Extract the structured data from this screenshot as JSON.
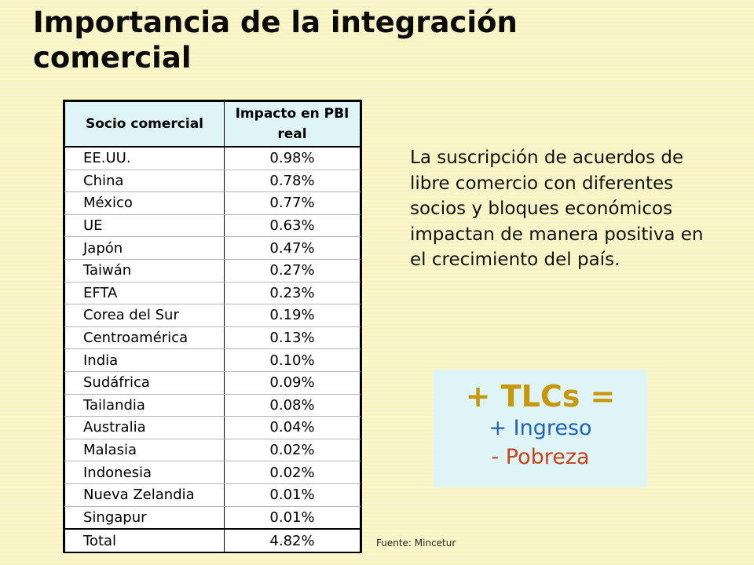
{
  "title": "Importancia de la integración comercial",
  "table": {
    "headers": [
      "Socio comercial",
      "Impacto en PBI real"
    ],
    "rows": [
      {
        "partner": "EE.UU.",
        "impact": "0.98%"
      },
      {
        "partner": "China",
        "impact": "0.78%"
      },
      {
        "partner": "México",
        "impact": "0.77%"
      },
      {
        "partner": "UE",
        "impact": "0.63%"
      },
      {
        "partner": "Japón",
        "impact": "0.47%"
      },
      {
        "partner": "Taiwán",
        "impact": "0.27%"
      },
      {
        "partner": "EFTA",
        "impact": "0.23%"
      },
      {
        "partner": "Corea del Sur",
        "impact": "0.19%"
      },
      {
        "partner": "Centroamérica",
        "impact": "0.13%"
      },
      {
        "partner": "India",
        "impact": "0.10%"
      },
      {
        "partner": "Sudáfrica",
        "impact": "0.09%"
      },
      {
        "partner": "Tailandia",
        "impact": "0.08%"
      },
      {
        "partner": "Australia",
        "impact": "0.04%"
      },
      {
        "partner": "Malasia",
        "impact": "0.02%"
      },
      {
        "partner": "Indonesia",
        "impact": "0.02%"
      },
      {
        "partner": "Nueva Zelandia",
        "impact": "0.01%"
      },
      {
        "partner": "Singapur",
        "impact": "0.01%"
      }
    ],
    "total": {
      "label": "Total",
      "value": "4.82%"
    }
  },
  "description": "La suscripción de acuerdos de libre comercio con diferentes socios y bloques económicos impactan de manera positiva en el crecimiento del país.",
  "tlc_box": {
    "title": "+ TLCs =",
    "line1": "+ Ingreso",
    "line2": "- Pobreza"
  },
  "source": "Fuente: Mincetur",
  "colors": {
    "background": "#f9f3c2",
    "header_fill": "#dff4f7",
    "tlc_title": "#c8970a",
    "ingreso": "#1d63b8",
    "pobreza": "#c8431c"
  }
}
